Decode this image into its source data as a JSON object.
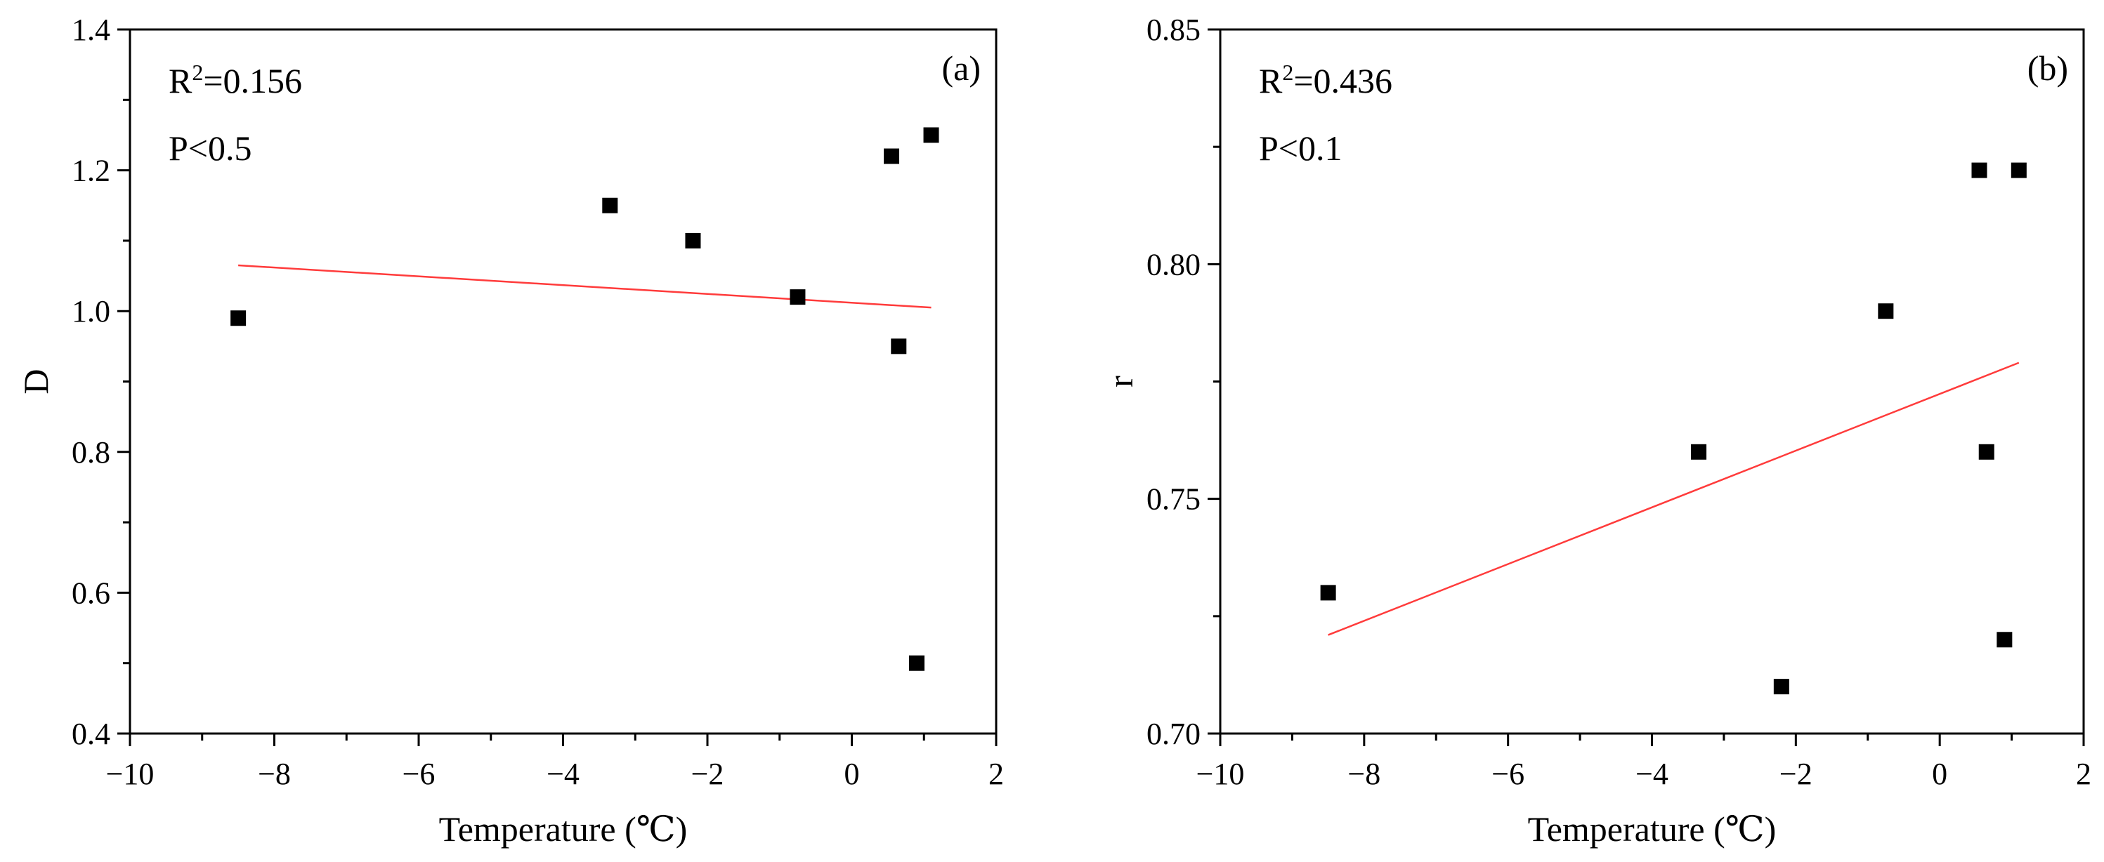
{
  "chart_data": [
    {
      "type": "scatter",
      "panel_label": "(a)",
      "xlabel": "Temperature (℃)",
      "ylabel": "D",
      "xlim": [
        -10,
        2
      ],
      "ylim": [
        0.4,
        1.4
      ],
      "xticks": [
        -10,
        -8,
        -6,
        -4,
        -2,
        0,
        2
      ],
      "yticks": [
        0.4,
        0.6,
        0.8,
        1.0,
        1.2,
        1.4
      ],
      "xtick_labels": [
        "−10",
        "−8",
        "−6",
        "−4",
        "−2",
        "0",
        "2"
      ],
      "ytick_labels": [
        "0.4",
        "0.6",
        "0.8",
        "1.0",
        "1.2",
        "1.4"
      ],
      "stats": {
        "r2_label": "R",
        "r2_sup": "2",
        "r2_value": "=0.156",
        "p_text": "P<0.5"
      },
      "points": [
        {
          "x": -8.5,
          "y": 0.99
        },
        {
          "x": -3.35,
          "y": 1.15
        },
        {
          "x": -2.2,
          "y": 1.1
        },
        {
          "x": -0.75,
          "y": 1.02
        },
        {
          "x": 0.55,
          "y": 1.22
        },
        {
          "x": 0.65,
          "y": 0.95
        },
        {
          "x": 0.9,
          "y": 0.5
        },
        {
          "x": 1.1,
          "y": 1.25
        }
      ],
      "fit_line": {
        "x": [
          -8.5,
          1.1
        ],
        "y": [
          1.065,
          1.005
        ]
      },
      "marker_color": "#000000",
      "fit_color": "#ff3b3b"
    },
    {
      "type": "scatter",
      "panel_label": "(b)",
      "xlabel": "Temperature (℃)",
      "ylabel": "r",
      "xlim": [
        -10,
        2
      ],
      "ylim": [
        0.7,
        0.85
      ],
      "xticks": [
        -10,
        -8,
        -6,
        -4,
        -2,
        0,
        2
      ],
      "yticks": [
        0.7,
        0.75,
        0.8,
        0.85
      ],
      "xtick_labels": [
        "−10",
        "−8",
        "−6",
        "−4",
        "−2",
        "0",
        "2"
      ],
      "ytick_labels": [
        "0.70",
        "0.75",
        "0.80",
        "0.85"
      ],
      "stats": {
        "r2_label": "R",
        "r2_sup": "2",
        "r2_value": "=0.436",
        "p_text": "P<0.1"
      },
      "points": [
        {
          "x": -8.5,
          "y": 0.73
        },
        {
          "x": -3.35,
          "y": 0.76
        },
        {
          "x": -2.2,
          "y": 0.71
        },
        {
          "x": -0.75,
          "y": 0.79
        },
        {
          "x": 0.55,
          "y": 0.82
        },
        {
          "x": 0.65,
          "y": 0.76
        },
        {
          "x": 0.9,
          "y": 0.72
        },
        {
          "x": 1.1,
          "y": 0.82
        }
      ],
      "fit_line": {
        "x": [
          -8.5,
          1.1
        ],
        "y": [
          0.721,
          0.779
        ]
      },
      "marker_color": "#000000",
      "fit_color": "#ff3b3b"
    }
  ]
}
